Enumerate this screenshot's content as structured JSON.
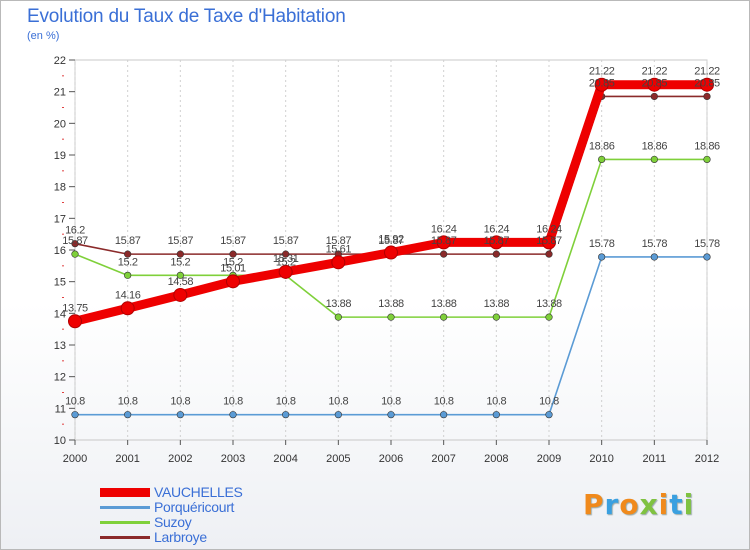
{
  "title": "Evolution du Taux de Taxe d'Habitation",
  "subtitle": "(en %)",
  "brand": "Proxiti",
  "chart_data": {
    "type": "line",
    "title": "Evolution du Taux de Taxe d'Habitation",
    "ylabel": "(en %)",
    "xlabel": "",
    "x": [
      "2000",
      "2001",
      "2002",
      "2003",
      "2004",
      "2005",
      "2006",
      "2007",
      "2008",
      "2009",
      "2010",
      "2011",
      "2012"
    ],
    "ylim": [
      10,
      22
    ],
    "yticks": [
      10,
      11,
      12,
      13,
      14,
      15,
      16,
      17,
      18,
      19,
      20,
      21,
      22
    ],
    "grid": "vertical",
    "legend": "bottom-left",
    "series": [
      {
        "name": "VAUCHELLES",
        "color": "#ee0000",
        "values": [
          13.75,
          14.16,
          14.58,
          15.01,
          15.31,
          15.61,
          15.92,
          16.24,
          16.24,
          16.24,
          21.22,
          21.22,
          21.22
        ],
        "labels": [
          "13.75",
          "14.16",
          "14.58",
          "15.01",
          "15.31",
          "15.61",
          "15.92",
          "16.24",
          "16.24",
          "16.24",
          "21.22",
          "21.22",
          "21.22"
        ]
      },
      {
        "name": "Porquéricourt",
        "color": "#5b9bd5",
        "values": [
          10.8,
          10.8,
          10.8,
          10.8,
          10.8,
          10.8,
          10.8,
          10.8,
          10.8,
          10.8,
          15.78,
          15.78,
          15.78
        ],
        "labels": [
          "10.8",
          "10.8",
          "10.8",
          "10.8",
          "10.8",
          "10.8",
          "10.8",
          "10.8",
          "10.8",
          "10.8",
          "15.78",
          "15.78",
          "15.78"
        ]
      },
      {
        "name": "Suzoy",
        "color": "#7fd03a",
        "values": [
          15.87,
          15.2,
          15.2,
          15.2,
          15.2,
          13.88,
          13.88,
          13.88,
          13.88,
          13.88,
          18.86,
          18.86,
          18.86
        ],
        "labels": [
          "15.87",
          "15.2",
          "15.2",
          "15.2",
          "15.2",
          "13.88",
          "13.88",
          "13.88",
          "13.88",
          "13.88",
          "18.86",
          "18.86",
          "18.86"
        ]
      },
      {
        "name": "Larbroye",
        "color": "#8b2a2a",
        "values": [
          16.2,
          15.87,
          15.87,
          15.87,
          15.87,
          15.87,
          15.87,
          15.87,
          15.87,
          15.87,
          20.85,
          20.85,
          20.85
        ],
        "labels": [
          "16.2",
          "15.87",
          "15.87",
          "15.87",
          "15.87",
          "15.87",
          "15.87",
          "15.87",
          "15.87",
          "15.87",
          "20.85",
          "20.85",
          "20.85"
        ]
      }
    ]
  }
}
